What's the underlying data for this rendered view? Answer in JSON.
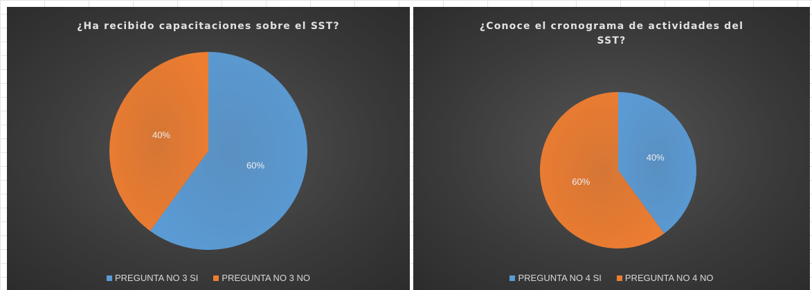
{
  "chart_data": [
    {
      "type": "pie",
      "title": "¿Ha recibido capacitaciones sobre el SST?",
      "categories": [
        "PREGUNTA NO 3 SI",
        "PREGUNTA NO 3 NO"
      ],
      "values": [
        60,
        40
      ],
      "value_labels": [
        "60%",
        "40%"
      ],
      "colors": [
        "#5b9bd5",
        "#ed7d31"
      ],
      "legend": "bottom"
    },
    {
      "type": "pie",
      "title": "¿Conoce el cronograma de actividades del SST?",
      "categories": [
        "PREGUNTA NO 4 SI",
        "PREGUNTA NO 4 NO"
      ],
      "values": [
        40,
        60
      ],
      "value_labels": [
        "40%",
        "60%"
      ],
      "colors": [
        "#5b9bd5",
        "#ed7d31"
      ],
      "legend": "bottom"
    }
  ]
}
